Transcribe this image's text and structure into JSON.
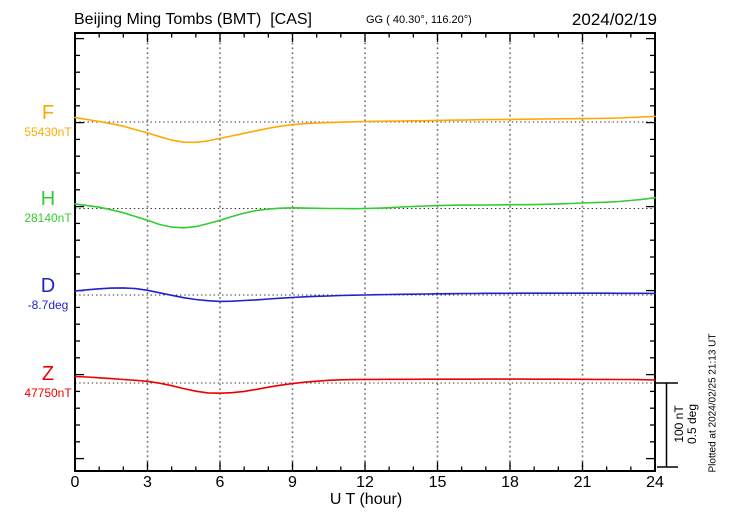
{
  "header": {
    "title": "Beijing Ming Tombs (BMT)  [CAS]",
    "coords": "GG ( 40.30°, 116.20°)",
    "date": "2024/02/19"
  },
  "x_axis": {
    "label": "U T (hour)",
    "ticks": [
      0,
      3,
      6,
      9,
      12,
      15,
      18,
      21,
      24
    ],
    "range_hours": [
      0,
      24
    ]
  },
  "scale_bar": {
    "lines": [
      "100 nT",
      "0.5 deg"
    ]
  },
  "plotted_at": "Plotted at 2024/02/25 21:13 UT",
  "chart_data": {
    "type": "line",
    "title": "Beijing Ming Tombs (BMT) [CAS] magnetogram 2024/02/19",
    "xlabel": "U T (hour)",
    "xlim": [
      0,
      24
    ],
    "grid": "dotted vertical every 3 h; dotted horizontal baseline per channel",
    "scale_per_division": {
      "nT": 100,
      "deg": 0.5
    },
    "x_hours": [
      0,
      0.5,
      1,
      1.5,
      2,
      2.5,
      3,
      3.5,
      4,
      4.5,
      5,
      5.5,
      6,
      6.5,
      7,
      7.5,
      8,
      8.5,
      9,
      9.5,
      10,
      10.5,
      11,
      11.5,
      12,
      12.5,
      13,
      13.5,
      14,
      14.5,
      15,
      15.5,
      16,
      16.5,
      17,
      17.5,
      18,
      18.5,
      19,
      19.5,
      20,
      20.5,
      21,
      21.5,
      22,
      22.5,
      23,
      23.5,
      24
    ],
    "series": [
      {
        "key": "F",
        "label": "F",
        "baseline_label": "55430nT",
        "baseline_value": 55430,
        "unit": "nT",
        "color": "#FFAA00",
        "y": [
          55435.5,
          55433,
          55430.5,
          55428,
          55425,
          55421,
          55417,
          55412.5,
          55408.5,
          55406,
          55405.8,
          55407.5,
          55410.5,
          55413.5,
          55416.5,
          55419.5,
          55422.5,
          55425,
          55426.8,
          55428,
          55428.8,
          55429.3,
          55429.8,
          55430.2,
          55430.6,
          55430.8,
          55431,
          55431.2,
          55431.4,
          55431.6,
          55431.9,
          55432.1,
          55432.3,
          55432.6,
          55432.8,
          55432.9,
          55433.1,
          55433.2,
          55433.4,
          55433.6,
          55433.8,
          55433.9,
          55434,
          55434.2,
          55434.4,
          55434.8,
          55435.3,
          55436,
          55436.8
        ]
      },
      {
        "key": "H",
        "label": "H",
        "baseline_label": "28140nT",
        "baseline_value": 28140,
        "unit": "nT",
        "color": "#33CC33",
        "y": [
          28145.5,
          28143.5,
          28141.5,
          28138.5,
          28135,
          28130.5,
          28126,
          28121,
          28117.8,
          28117,
          28118.5,
          28122,
          28126,
          28130.5,
          28134.5,
          28137.5,
          28139.3,
          28140.3,
          28140.8,
          28140.5,
          28140.2,
          28140,
          28140,
          28139.8,
          28140,
          28140.3,
          28141,
          28141.8,
          28142.5,
          28143,
          28143.5,
          28143.8,
          28144,
          28144.1,
          28144.2,
          28144.3,
          28144.5,
          28144.5,
          28144.6,
          28145,
          28145.5,
          28146,
          28146.5,
          28147,
          28147.5,
          28148.3,
          28149.5,
          28151,
          28152.8
        ]
      },
      {
        "key": "D",
        "label": "D",
        "baseline_label": "-8.7deg",
        "baseline_value": -8.7,
        "unit": "deg",
        "color": "#2222CC",
        "y": [
          -8.676,
          -8.669,
          -8.663,
          -8.659,
          -8.658,
          -8.662,
          -8.672,
          -8.687,
          -8.702,
          -8.716,
          -8.727,
          -8.734,
          -8.738,
          -8.737,
          -8.733,
          -8.729,
          -8.724,
          -8.719,
          -8.715,
          -8.711,
          -8.708,
          -8.706,
          -8.703,
          -8.701,
          -8.7,
          -8.698,
          -8.697,
          -8.696,
          -8.695,
          -8.694,
          -8.693,
          -8.692,
          -8.691,
          -8.691,
          -8.69,
          -8.69,
          -8.69,
          -8.689,
          -8.689,
          -8.689,
          -8.689,
          -8.689,
          -8.689,
          -8.689,
          -8.689,
          -8.69,
          -8.69,
          -8.69,
          -8.691
        ]
      },
      {
        "key": "Z",
        "label": "Z",
        "baseline_label": "47750nT",
        "baseline_value": 47750,
        "unit": "nT",
        "color": "#EE0000",
        "y": [
          47757.7,
          47757.2,
          47756.2,
          47755.2,
          47754.2,
          47753.2,
          47752,
          47749.8,
          47746.8,
          47743.3,
          47740.2,
          47738.2,
          47737.8,
          47738.4,
          47740,
          47742.4,
          47745,
          47747.4,
          47749.3,
          47751,
          47752.2,
          47753.2,
          47753.8,
          47754.1,
          47754.3,
          47754.3,
          47754.4,
          47754.4,
          47754.4,
          47754.5,
          47754.5,
          47754.5,
          47754.5,
          47754.5,
          47754.6,
          47754.6,
          47754.6,
          47754.6,
          47754.5,
          47754.5,
          47754.5,
          47754.4,
          47754.4,
          47754.3,
          47754.3,
          47754.2,
          47754.2,
          47753.9,
          47753.6
        ]
      }
    ]
  }
}
